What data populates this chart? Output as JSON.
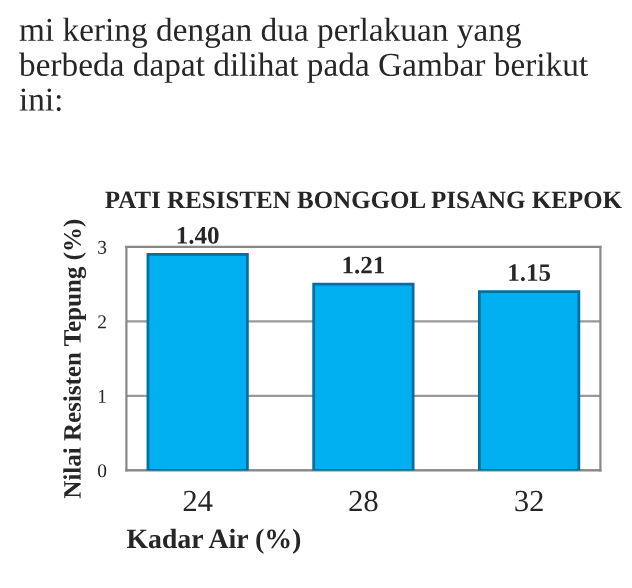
{
  "chart_data": {
    "type": "bar",
    "title": "PATI RESISTEN BONGGOL PISANG KEPOK",
    "annotations": [
      "mi kering dengan dua perlakuan yang berbeda dapat dilihat pada Gambar berikut ini:"
    ],
    "xlabel": "Kadar Air (%)",
    "ylabel": "Nilai Resisten Tepung (%)",
    "categories": [
      "24",
      "28",
      "32"
    ],
    "series": [
      {
        "color": "#00b0f0",
        "values": [
          2.9,
          2.5,
          2.4
        ]
      }
    ],
    "value_labels": [
      "1.40",
      "1.21",
      "1.15"
    ],
    "ylim": [
      0,
      3
    ],
    "yticks": [
      0,
      1,
      2,
      3
    ],
    "grid": "y"
  }
}
